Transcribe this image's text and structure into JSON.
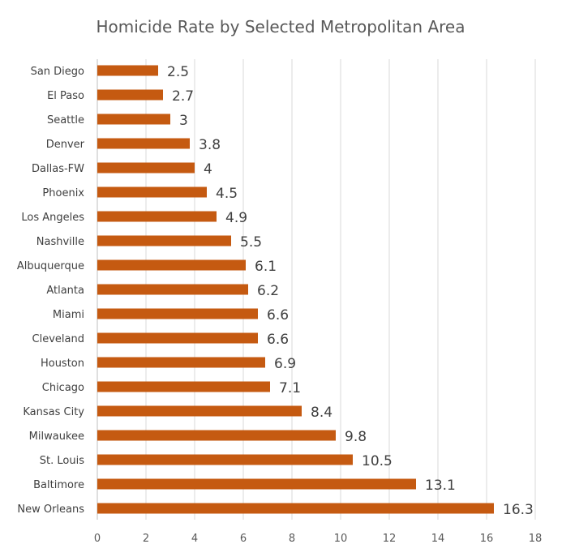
{
  "chart_data": {
    "type": "bar",
    "orientation": "horizontal",
    "title": "Homicide Rate by Selected Metropolitan Area",
    "xlabel": "",
    "ylabel": "",
    "categories": [
      "San Diego",
      "El Paso",
      "Seattle",
      "Denver",
      "Dallas-FW",
      "Phoenix",
      "Los Angeles",
      "Nashville",
      "Albuquerque",
      "Atlanta",
      "Miami",
      "Cleveland",
      "Houston",
      "Chicago",
      "Kansas City",
      "Milwaukee",
      "St. Louis",
      "Baltimore",
      "New Orleans"
    ],
    "values": [
      2.5,
      2.7,
      3,
      3.8,
      4,
      4.5,
      4.9,
      5.5,
      6.1,
      6.2,
      6.6,
      6.6,
      6.9,
      7.1,
      8.4,
      9.8,
      10.5,
      13.1,
      16.3
    ],
    "xlim": [
      0,
      18
    ],
    "xticks": [
      0,
      2,
      4,
      6,
      8,
      10,
      12,
      14,
      16,
      18
    ],
    "grid": true,
    "legend": "none",
    "bar_color": "#C55A11"
  }
}
